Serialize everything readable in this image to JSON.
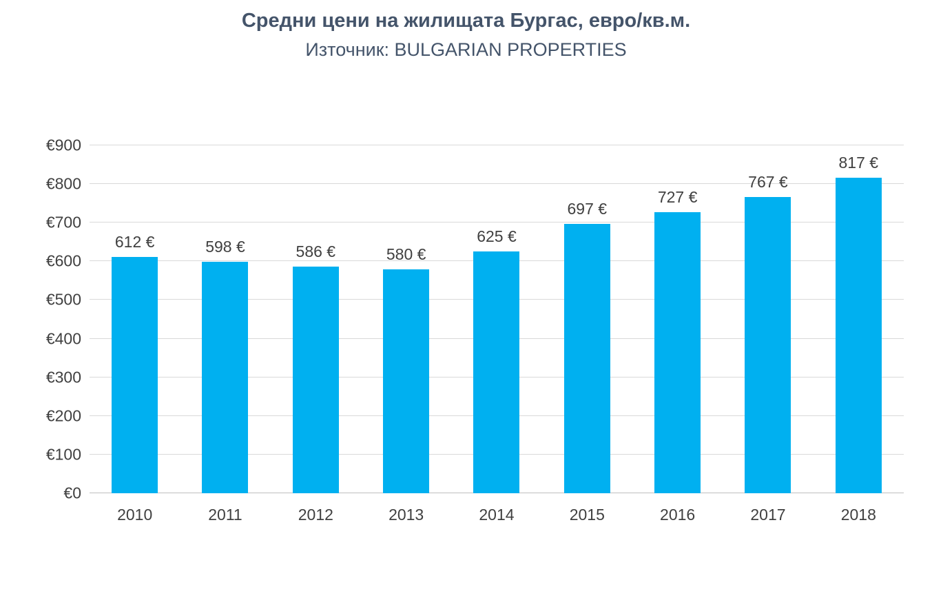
{
  "header": {
    "title": "Средни цени на жилищата Бургас, евро/кв.м.",
    "subtitle": "Източник: BULGARIAN PROPERTIES"
  },
  "colors": {
    "bar": "#00b0f0",
    "title_text": "#44546a",
    "axis_text": "#404040",
    "gridline": "#d9d9d9"
  },
  "chart_data": {
    "type": "bar",
    "title": "Средни цени на жилищата Бургас, евро/кв.м.",
    "subtitle": "Източник: BULGARIAN PROPERTIES",
    "categories": [
      "2010",
      "2011",
      "2012",
      "2013",
      "2014",
      "2015",
      "2016",
      "2017",
      "2018"
    ],
    "values": [
      612,
      598,
      586,
      580,
      625,
      697,
      727,
      767,
      817
    ],
    "data_labels": [
      "612 €",
      "598 €",
      "586 €",
      "580 €",
      "625 €",
      "697 €",
      "727 €",
      "767 €",
      "817 €"
    ],
    "xlabel": "",
    "ylabel": "",
    "ylim": [
      0,
      900
    ],
    "ytick_step": 100,
    "ytick_prefix": "€",
    "ytick_labels": [
      "€0",
      "€100",
      "€200",
      "€300",
      "€400",
      "€500",
      "€600",
      "€700",
      "€800",
      "€900"
    ],
    "grid": true,
    "legend": false
  }
}
